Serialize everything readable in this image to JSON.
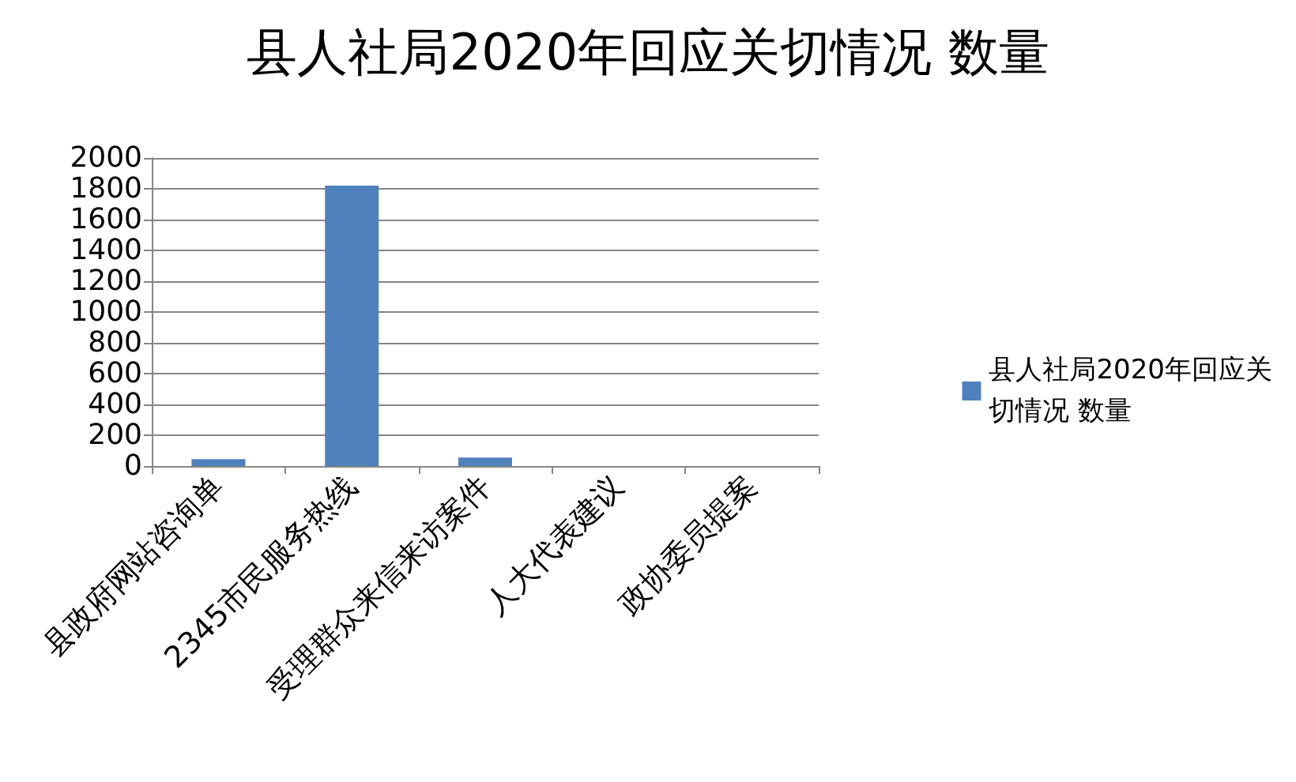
{
  "chart_data": {
    "type": "bar",
    "title": "县人社局2020年回应关切情况 数量",
    "categories": [
      "县政府网站咨询单",
      "2345市民服务热线",
      "受理群众来信来访案件",
      "人大代表建议",
      "政协委员提案"
    ],
    "series": [
      {
        "name": "县人社局2020年回应关切情况 数量",
        "color": "#4f81bd",
        "values": [
          45,
          1820,
          55,
          0,
          0
        ]
      }
    ],
    "ylim": [
      0,
      2000
    ],
    "yticks": [
      0,
      200,
      400,
      600,
      800,
      1000,
      1200,
      1400,
      1600,
      1800,
      2000
    ],
    "grid": "y",
    "legend": "right"
  }
}
